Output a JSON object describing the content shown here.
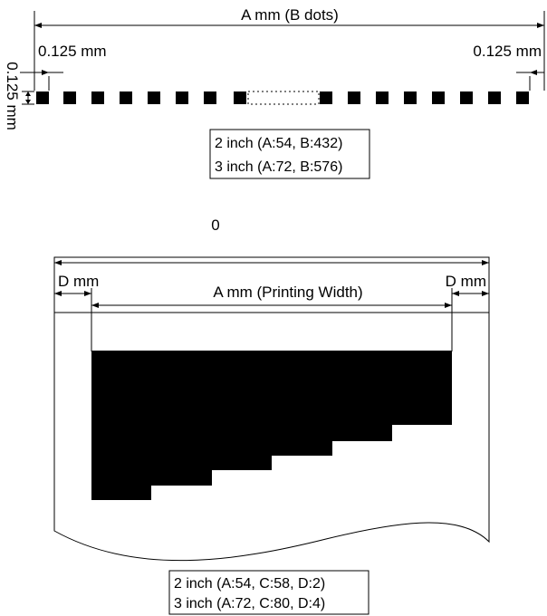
{
  "top_diagram": {
    "total_width_label": "A mm (B dots)",
    "left_margin_label": "0.125 mm",
    "right_margin_label": "0.125 mm",
    "dot_height_label": "0.125 mm",
    "spec_lines": [
      "2 inch (A:54, B:432)",
      "3 inch (A:72, B:576)"
    ]
  },
  "separator_label": "0",
  "bottom_diagram": {
    "left_margin_label": "D mm",
    "right_margin_label": "D mm",
    "printing_width_label": "A  mm (Printing Width)",
    "spec_lines": [
      "2 inch (A:54, C:58, D:2)",
      "3 inch (A:72, C:80, D:4)"
    ]
  },
  "colors": {
    "ink": "#000000",
    "paper": "#ffffff"
  }
}
